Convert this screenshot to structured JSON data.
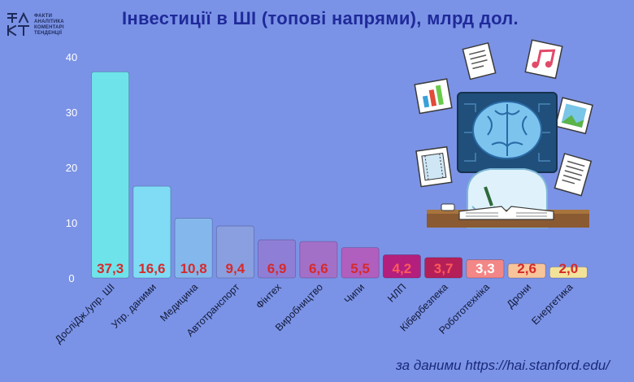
{
  "logo": {
    "mark": "ФА КТ",
    "lines": [
      "ФАКТИ",
      "АНАЛІТИКА",
      "КОМЕНТАРІ",
      "ТЕНДЕНЦІЇ"
    ]
  },
  "title": "Інвестиції в ШІ (топові напрями), млрд дол.",
  "source": "за даними https://hai.stanford.edu/",
  "illustration": "brain-student-studying-icon",
  "chart_data": {
    "type": "bar",
    "categories": [
      "ДосліДж./упр. ШІ",
      "Упр. даними",
      "Медицина",
      "Автотранспорт",
      "Фінтех",
      "Виробництво",
      "Чипи",
      "НЛП",
      "Кібербезпека",
      "Робототехніка",
      "Дрони",
      "Енергетика"
    ],
    "values": [
      37.3,
      16.6,
      10.8,
      9.4,
      6.9,
      6.6,
      5.5,
      4.2,
      3.7,
      3.3,
      2.6,
      2.0
    ],
    "value_labels": [
      "37,3",
      "16,6",
      "10,8",
      "9,4",
      "6,9",
      "6,6",
      "5,5",
      "4,2",
      "3,7",
      "3,3",
      "2,6",
      "2,0"
    ],
    "bar_colors": [
      "#6fe3ea",
      "#7fdcf4",
      "#84b8ec",
      "#8a9fdf",
      "#8f7ed6",
      "#a370c8",
      "#b05fbf",
      "#b41f7d",
      "#b51f58",
      "#f38686",
      "#f8c49a",
      "#f3e39a"
    ],
    "label_colors": [
      "#d62a2a",
      "#d62a2a",
      "#d62a2a",
      "#d62a2a",
      "#d62a2a",
      "#d62a2a",
      "#d62a2a",
      "#ff5a5a",
      "#ff5a5a",
      "#ffffff",
      "#d62a2a",
      "#d62a2a"
    ],
    "yticks": [
      0,
      10,
      20,
      30,
      40
    ],
    "ylim": [
      0,
      40
    ],
    "grid": false,
    "xlabel": "",
    "ylabel": ""
  }
}
